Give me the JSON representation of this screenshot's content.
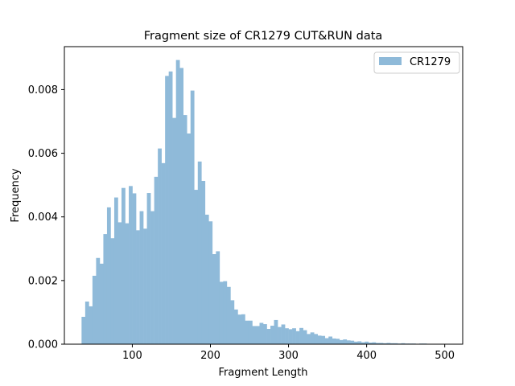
{
  "chart_data": {
    "type": "bar",
    "title": "Fragment size of CR1279 CUT&RUN data",
    "xlabel": "Fragment Length",
    "ylabel": "Frequency",
    "xlim": [
      13,
      523
    ],
    "ylim": [
      0,
      0.00935
    ],
    "xticks": [
      100,
      200,
      300,
      400,
      500
    ],
    "xtick_labels": [
      "100",
      "200",
      "300",
      "400",
      "500"
    ],
    "yticks": [
      0,
      0.002,
      0.004,
      0.006,
      0.008
    ],
    "ytick_labels": [
      "0.000",
      "0.002",
      "0.004",
      "0.006",
      "0.008"
    ],
    "grid": false,
    "legend_position": "top-right",
    "series": [
      {
        "name": "CR1279",
        "color": "#8fbad9",
        "bin_start": 35,
        "bin_width": 4.65,
        "values": [
          0.00086,
          0.00134,
          0.00119,
          0.00215,
          0.00271,
          0.00253,
          0.00346,
          0.0043,
          0.00333,
          0.00461,
          0.00383,
          0.00491,
          0.0038,
          0.00497,
          0.00474,
          0.00358,
          0.00418,
          0.00363,
          0.00475,
          0.00418,
          0.00526,
          0.00615,
          0.00569,
          0.00843,
          0.00857,
          0.00711,
          0.00893,
          0.00868,
          0.0072,
          0.00662,
          0.00797,
          0.00485,
          0.00574,
          0.00513,
          0.00407,
          0.00386,
          0.00283,
          0.00292,
          0.00196,
          0.00198,
          0.0018,
          0.00138,
          0.00109,
          0.00093,
          0.00094,
          0.00074,
          0.00074,
          0.00057,
          0.00057,
          0.00067,
          0.00063,
          0.00048,
          0.00058,
          0.00076,
          0.00054,
          0.00062,
          0.0005,
          0.00047,
          0.0005,
          0.00041,
          0.00051,
          0.00044,
          0.00032,
          0.00037,
          0.00032,
          0.00027,
          0.00026,
          0.00019,
          0.00024,
          0.00018,
          0.00017,
          0.00013,
          0.00015,
          0.00012,
          0.00011,
          8e-05,
          9e-05,
          6e-05,
          8e-05,
          5e-05,
          6e-05,
          4e-05,
          4e-05,
          3e-05,
          4e-05,
          3e-05,
          3e-05,
          2e-05,
          3e-05,
          2e-05,
          2e-05,
          2e-05,
          1e-05,
          2e-05,
          2e-05,
          1e-05,
          1e-05,
          1e-05,
          1e-05,
          1e-05
        ]
      }
    ]
  }
}
